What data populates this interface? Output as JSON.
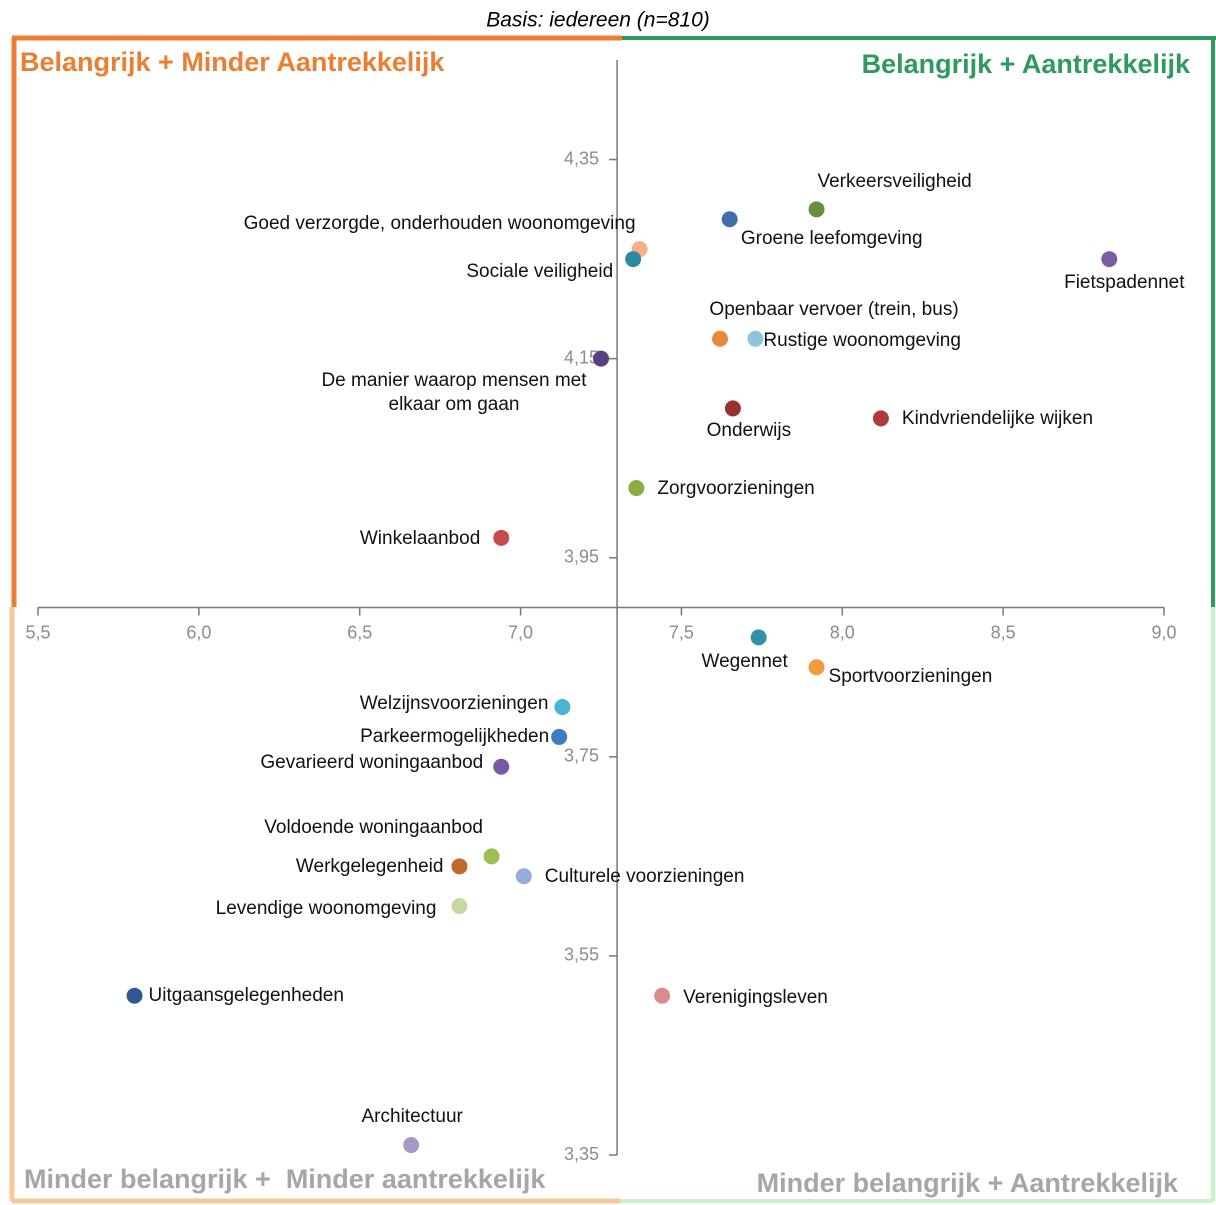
{
  "chart_data": {
    "type": "scatter",
    "subtitle": "Basis: iedereen (n=810)",
    "quadrants": {
      "top_left": "Belangrijk + Minder Aantrekkelijk",
      "top_right": "Belangrijk + Aantrekkelijk",
      "bottom_left": "Minder belangrijk +  Minder aantrekkelijk",
      "bottom_right": "Minder belangrijk + Aantrekkelijk"
    },
    "labels": [
      "Verkeersveiligheid",
      "Groene leefomgeving",
      "Goed verzorgde, onderhouden woonomgeving",
      "Sociale veiligheid",
      "Fietspadennet",
      "Openbaar vervoer (trein, bus)",
      "Rustige woonomgeving",
      "De manier waarop mensen met elkaar om gaan",
      "Onderwijs",
      "Kindvriendelijke wijken",
      "Zorgvoorzieningen",
      "Winkelaanbod",
      "Wegennet",
      "Sportvoorzieningen",
      "Welzijnsvoorzieningen",
      "Parkeermogelijkheden",
      "Gevarieerd woningaanbod",
      "Voldoende woningaanbod",
      "Werkgelegenheid",
      "Culturele voorzieningen",
      "Levendige woonomgeving",
      "Uitgaansgelegenheden",
      "Verenigingsleven",
      "Architectuur"
    ],
    "x": [
      7.92,
      7.65,
      7.37,
      7.35,
      8.83,
      7.62,
      7.73,
      7.25,
      7.66,
      8.12,
      7.36,
      6.94,
      7.74,
      7.92,
      7.13,
      7.12,
      6.94,
      6.91,
      6.81,
      7.01,
      6.81,
      5.8,
      7.44,
      6.66
    ],
    "y": [
      4.3,
      4.29,
      4.26,
      4.25,
      4.25,
      4.17,
      4.17,
      4.15,
      4.1,
      4.09,
      4.02,
      3.97,
      3.87,
      3.84,
      3.8,
      3.77,
      3.74,
      3.65,
      3.64,
      3.63,
      3.6,
      3.51,
      3.51,
      3.36
    ],
    "colors": [
      "#6b8e3a",
      "#3f6fae",
      "#f5b08a",
      "#2e8aa0",
      "#7b5ea0",
      "#e58a3c",
      "#8ec4dc",
      "#5a3f7d",
      "#9b3232",
      "#b03a3a",
      "#8aad45",
      "#c94a4a",
      "#2f93a8",
      "#f59a3c",
      "#4db3d3",
      "#3f7cc0",
      "#7a58a8",
      "#9cc04f",
      "#c0692a",
      "#95aed8",
      "#c3d9a0",
      "#2f5a90",
      "#d98c8c",
      "#a898c8"
    ],
    "xlim": [
      5.5,
      9.0
    ],
    "ylim": [
      3.35,
      4.45
    ],
    "xticks": [
      {
        "value": 5.5,
        "label": "5,5"
      },
      {
        "value": 6.0,
        "label": "6,0"
      },
      {
        "value": 6.5,
        "label": "6,5"
      },
      {
        "value": 7.0,
        "label": "7,0"
      },
      {
        "value": 7.5,
        "label": "7,5"
      },
      {
        "value": 8.0,
        "label": "8,0"
      },
      {
        "value": 8.5,
        "label": "8,5"
      },
      {
        "value": 9.0,
        "label": "9,0"
      }
    ],
    "yticks": [
      {
        "value": 3.35,
        "label": "3,35"
      },
      {
        "value": 3.55,
        "label": "3,55"
      },
      {
        "value": 3.75,
        "label": "3,75"
      },
      {
        "value": 3.95,
        "label": "3,95"
      },
      {
        "value": 4.15,
        "label": "4,15"
      },
      {
        "value": 4.35,
        "label": "4,35"
      }
    ],
    "xaxis_crosses_at": 3.9,
    "yaxis_crosses_at": 7.3
  }
}
